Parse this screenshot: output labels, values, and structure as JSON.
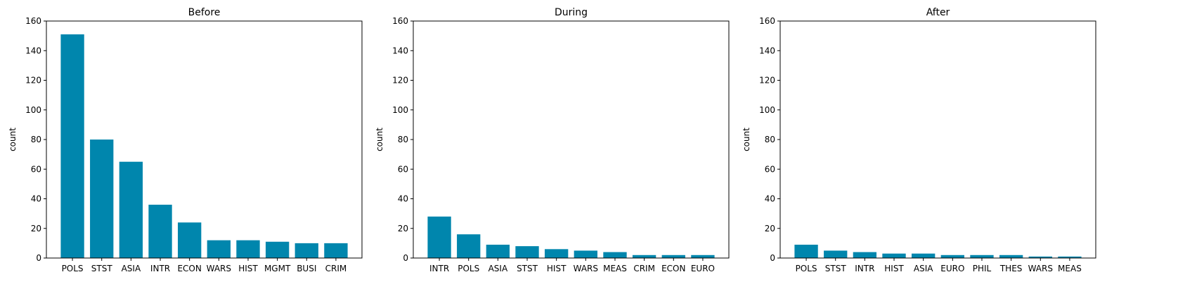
{
  "chart_data": [
    {
      "type": "bar",
      "title": "Before",
      "xlabel": "",
      "ylabel": "count",
      "ylim": [
        0,
        160
      ],
      "yticks": [
        0,
        20,
        40,
        60,
        80,
        100,
        120,
        140,
        160
      ],
      "grid": false,
      "color": "#0086AD",
      "categories": [
        "POLS",
        "STST",
        "ASIA",
        "INTR",
        "ECON",
        "WARS",
        "HIST",
        "MGMT",
        "BUSI",
        "CRIM"
      ],
      "values": [
        151,
        80,
        65,
        36,
        24,
        12,
        12,
        11,
        10,
        10
      ]
    },
    {
      "type": "bar",
      "title": "During",
      "xlabel": "",
      "ylabel": "count",
      "ylim": [
        0,
        160
      ],
      "yticks": [
        0,
        20,
        40,
        60,
        80,
        100,
        120,
        140,
        160
      ],
      "grid": false,
      "color": "#0086AD",
      "categories": [
        "INTR",
        "POLS",
        "ASIA",
        "STST",
        "HIST",
        "WARS",
        "MEAS",
        "CRIM",
        "ECON",
        "EURO"
      ],
      "values": [
        28,
        16,
        9,
        8,
        6,
        5,
        4,
        2,
        2,
        2
      ]
    },
    {
      "type": "bar",
      "title": "After",
      "xlabel": "",
      "ylabel": "count",
      "ylim": [
        0,
        160
      ],
      "yticks": [
        0,
        20,
        40,
        60,
        80,
        100,
        120,
        140,
        160
      ],
      "grid": false,
      "color": "#0086AD",
      "categories": [
        "POLS",
        "STST",
        "INTR",
        "HIST",
        "ASIA",
        "EURO",
        "PHIL",
        "THES",
        "WARS",
        "MEAS"
      ],
      "values": [
        9,
        5,
        4,
        3,
        3,
        2,
        2,
        2,
        1,
        1
      ]
    }
  ]
}
